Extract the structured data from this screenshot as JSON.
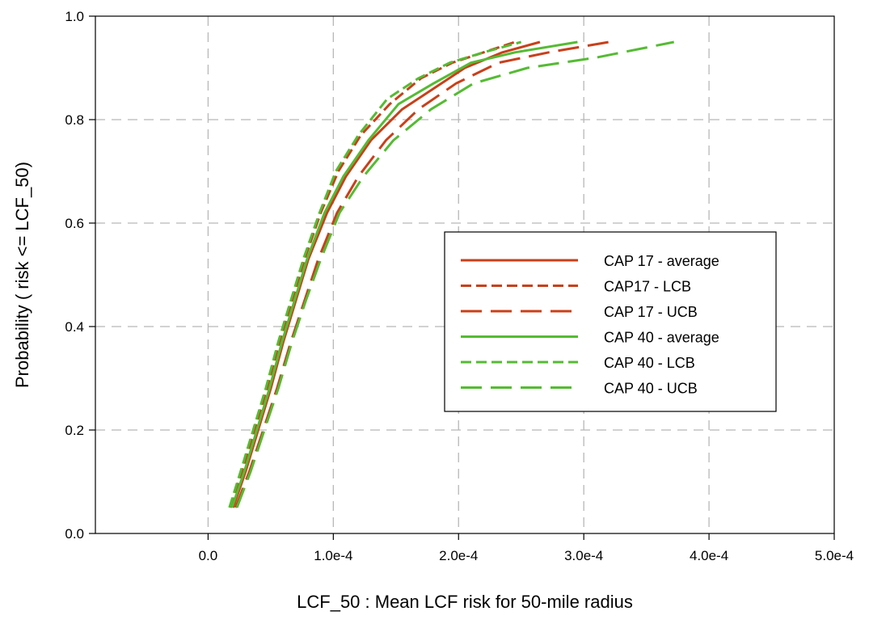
{
  "chart_data": {
    "type": "line",
    "xlabel": "LCF_50 : Mean LCF risk for 50-mile radius",
    "ylabel": "Probability ( risk <= LCF_50)",
    "xlim": [
      -9e-05,
      0.0005
    ],
    "ylim": [
      0.0,
      1.0
    ],
    "x_ticks": [
      0.0,
      0.0001,
      0.0002,
      0.0003,
      0.0004,
      0.0005
    ],
    "x_tick_labels": [
      "0.0",
      "1.0e-4",
      "2.0e-4",
      "3.0e-4",
      "4.0e-4",
      "5.0e-4"
    ],
    "y_ticks": [
      0.0,
      0.2,
      0.4,
      0.6,
      0.8,
      1.0
    ],
    "y_tick_labels": [
      "0.0",
      "0.2",
      "0.4",
      "0.6",
      "0.8",
      "1.0"
    ],
    "grid": true,
    "legend_position": "center-right",
    "series": [
      {
        "name": "CAP 17 - average",
        "color": "#c8401a",
        "dash": "solid",
        "x": [
          2e-05,
          3e-05,
          4e-05,
          5e-05,
          6e-05,
          7e-05,
          8e-05,
          9.5e-05,
          0.00011,
          0.00013,
          0.000155,
          0.00018,
          0.000205,
          0.000235,
          0.000265
        ],
        "y": [
          0.05,
          0.12,
          0.2,
          0.28,
          0.37,
          0.45,
          0.53,
          0.62,
          0.69,
          0.76,
          0.82,
          0.86,
          0.9,
          0.93,
          0.95
        ]
      },
      {
        "name": "CAP17 - LCB",
        "color": "#c8401a",
        "dash": "short",
        "x": [
          1.8e-05,
          2.7e-05,
          3.7e-05,
          4.7e-05,
          5.7e-05,
          6.7e-05,
          7.7e-05,
          9e-05,
          0.000104,
          0.000122,
          0.000145,
          0.00017,
          0.000195,
          0.00022,
          0.000245
        ],
        "y": [
          0.05,
          0.12,
          0.2,
          0.28,
          0.37,
          0.45,
          0.53,
          0.62,
          0.7,
          0.77,
          0.83,
          0.88,
          0.91,
          0.93,
          0.95
        ]
      },
      {
        "name": "CAP 17  - UCB",
        "color": "#c8401a",
        "dash": "long",
        "x": [
          2.2e-05,
          3.3e-05,
          4.4e-05,
          5.5e-05,
          6.6e-05,
          7.7e-05,
          8.8e-05,
          0.000103,
          0.00012,
          0.000142,
          0.000168,
          0.000198,
          0.000232,
          0.000272,
          0.00032
        ],
        "y": [
          0.05,
          0.12,
          0.2,
          0.28,
          0.37,
          0.45,
          0.53,
          0.62,
          0.69,
          0.76,
          0.82,
          0.87,
          0.91,
          0.93,
          0.95
        ]
      },
      {
        "name": "CAP 40 - average",
        "color": "#55bb33",
        "dash": "solid",
        "x": [
          1.9e-05,
          2.9e-05,
          3.9e-05,
          4.9e-05,
          5.9e-05,
          6.9e-05,
          7.9e-05,
          9.3e-05,
          0.000108,
          0.000128,
          0.000152,
          0.00018,
          0.00021,
          0.000245,
          0.000295
        ],
        "y": [
          0.05,
          0.12,
          0.2,
          0.28,
          0.37,
          0.45,
          0.53,
          0.62,
          0.69,
          0.76,
          0.83,
          0.87,
          0.91,
          0.93,
          0.95
        ]
      },
      {
        "name": "CAP 40 - LCB",
        "color": "#55bb33",
        "dash": "short",
        "x": [
          1.7e-05,
          2.6e-05,
          3.6e-05,
          4.6e-05,
          5.6e-05,
          6.6e-05,
          7.6e-05,
          8.9e-05,
          0.000102,
          0.00012,
          0.000143,
          0.000168,
          0.000193,
          0.00022,
          0.00025
        ],
        "y": [
          0.05,
          0.12,
          0.2,
          0.28,
          0.37,
          0.45,
          0.53,
          0.62,
          0.7,
          0.77,
          0.84,
          0.88,
          0.91,
          0.93,
          0.95
        ]
      },
      {
        "name": "CAP 40 - UCB",
        "color": "#55bb33",
        "dash": "long",
        "x": [
          2.3e-05,
          3.4e-05,
          4.5e-05,
          5.6e-05,
          6.7e-05,
          7.8e-05,
          9e-05,
          0.000105,
          0.000124,
          0.000148,
          0.000178,
          0.000212,
          0.000255,
          0.00031,
          0.000372
        ],
        "y": [
          0.05,
          0.12,
          0.2,
          0.28,
          0.37,
          0.45,
          0.53,
          0.62,
          0.69,
          0.76,
          0.82,
          0.87,
          0.9,
          0.92,
          0.95
        ]
      }
    ]
  }
}
